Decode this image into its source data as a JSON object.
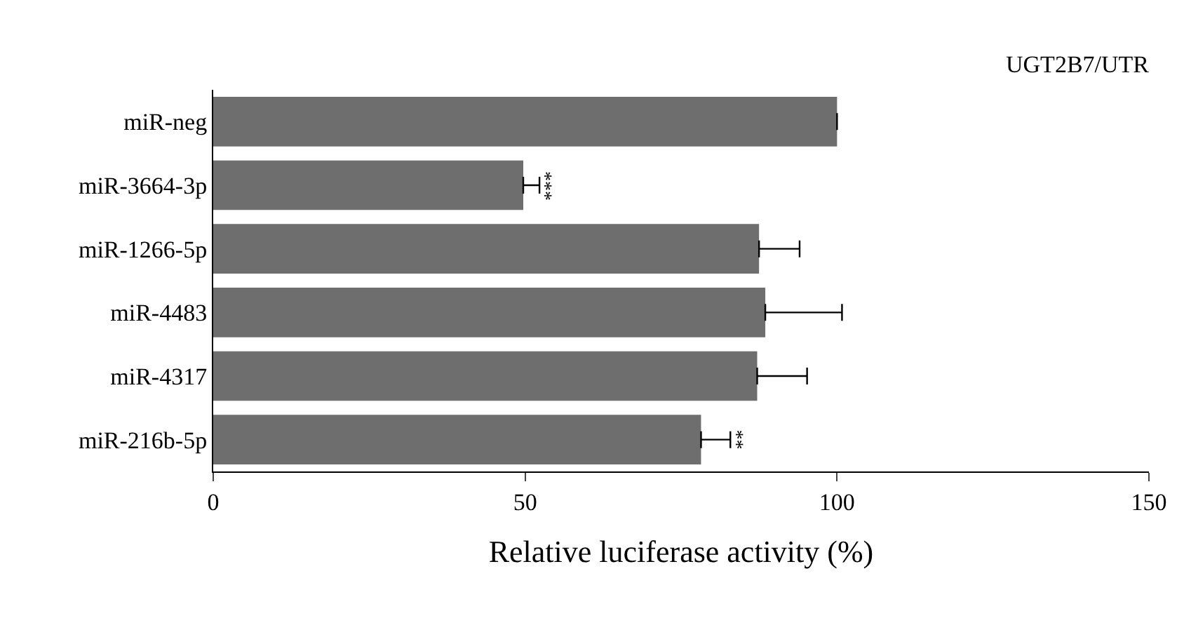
{
  "chart_data": {
    "type": "bar",
    "orientation": "horizontal",
    "title": "UGT2B7/UTR",
    "xlabel": "Relative luciferase activity (%)",
    "categories": [
      "miR-neg",
      "miR-3664-3p",
      "miR-1266-5p",
      "miR-4483",
      "miR-4317",
      "miR-216b-5p"
    ],
    "values": [
      100,
      49.7,
      87.5,
      88.5,
      87.2,
      78.2
    ],
    "errors": [
      null,
      [
        49.7,
        52.3
      ],
      [
        87.5,
        94.0
      ],
      [
        88.5,
        100.8
      ],
      [
        87.2,
        95.2
      ],
      [
        78.2,
        82.9
      ]
    ],
    "color": "#6e6e6e",
    "xlim": [
      0,
      150
    ],
    "xticks": [
      0,
      50,
      100,
      150
    ],
    "annotations": [
      {
        "text": "***",
        "x": 52.3,
        "y": "miR-3664-3p"
      },
      {
        "text": "**",
        "x": 82.9,
        "y": "miR-216b-5p"
      }
    ]
  }
}
